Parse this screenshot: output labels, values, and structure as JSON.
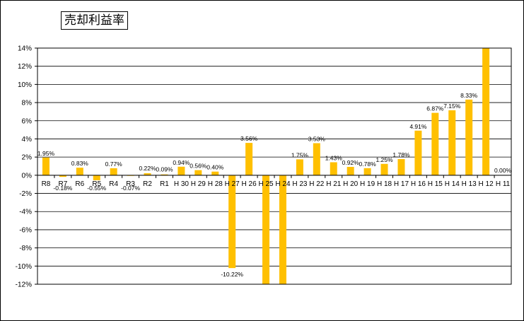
{
  "chart_data": {
    "type": "bar",
    "title": "売却利益率",
    "xlabel": "",
    "ylabel": "",
    "ylim": [
      -12,
      14
    ],
    "y_tick_step": 2,
    "y_tick_labels": [
      "14%",
      "12%",
      "10%",
      "8%",
      "6%",
      "4%",
      "2%",
      "0%",
      "-2%",
      "-4%",
      "-6%",
      "-8%",
      "-10%",
      "-12%"
    ],
    "grid": true,
    "legend": "none",
    "bar_color": "#FFC000",
    "categories": [
      "R8",
      "R7",
      "R6",
      "R5",
      "R4",
      "R3",
      "R2",
      "R1",
      "H30",
      "H29",
      "H28",
      "H27",
      "H26",
      "H25",
      "H24",
      "H23",
      "H22",
      "H21",
      "H20",
      "H19",
      "H18",
      "H17",
      "H16",
      "H15",
      "H14",
      "H13",
      "H12",
      "H11"
    ],
    "category_labels": [
      "R8",
      "R7",
      "R6",
      "R5",
      "R4",
      "R3",
      "R2",
      "R1",
      "H 30",
      "H 29",
      "H 28",
      "H 27",
      "H 26",
      "H 25",
      "H 24",
      "H 23",
      "H 22",
      "H 21",
      "H 20",
      "H 19",
      "H 18",
      "H 17",
      "H 16",
      "H 15",
      "H 14",
      "H 13",
      "H 12",
      "H 11"
    ],
    "values": [
      1.95,
      -0.18,
      0.83,
      -0.55,
      0.77,
      -0.07,
      0.22,
      0.09,
      0.94,
      0.56,
      0.4,
      -10.22,
      3.56,
      -12.0,
      -12.0,
      1.75,
      3.53,
      1.43,
      0.92,
      0.78,
      1.25,
      1.78,
      4.91,
      6.87,
      7.15,
      8.33,
      14.0,
      0.0
    ],
    "data_labels": [
      "1.95%",
      "-0.18%",
      "0.83%",
      "-0.55%",
      "0.77%",
      "-0.07%",
      "0.22%",
      "0.09%",
      "0.94%",
      "0.56%",
      "0.40%",
      "-10.22%",
      "3.56%",
      "",
      "",
      "1.75%",
      "3.53%",
      "1.43%",
      "0.92%",
      "0.78%",
      "1.25%",
      "1.78%",
      "4.91%",
      "6.87%",
      "7.15%",
      "8.33%",
      "",
      "0.00%"
    ]
  }
}
